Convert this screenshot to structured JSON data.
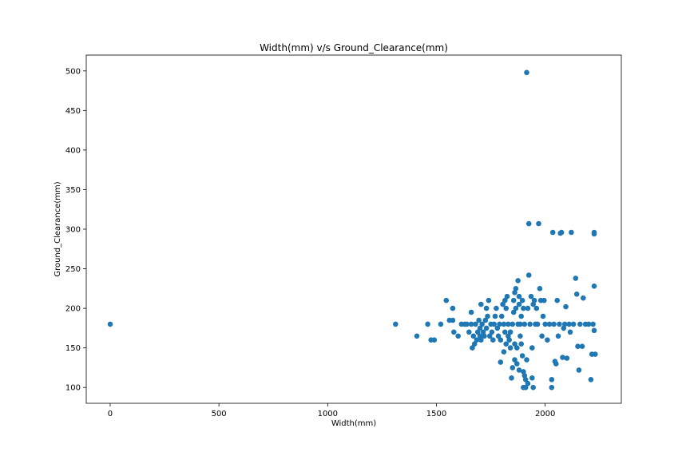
{
  "chart_data": {
    "type": "scatter",
    "title": "Width(mm) v/s Ground_Clearance(mm)",
    "xlabel": "Width(mm)",
    "ylabel": "Ground_Clearance(mm)",
    "xlim": [
      -110,
      2350
    ],
    "ylim": [
      80,
      520
    ],
    "xticks": [
      0,
      500,
      1000,
      1500,
      2000
    ],
    "yticks": [
      100,
      150,
      200,
      250,
      300,
      350,
      400,
      450,
      500
    ],
    "grid": false,
    "marker_color": "#1f77b4",
    "points": [
      [
        0,
        180
      ],
      [
        1312,
        180
      ],
      [
        1410,
        165
      ],
      [
        1460,
        180
      ],
      [
        1475,
        160
      ],
      [
        1490,
        160
      ],
      [
        1520,
        180
      ],
      [
        1545,
        210
      ],
      [
        1560,
        185
      ],
      [
        1575,
        200
      ],
      [
        1575,
        185
      ],
      [
        1580,
        170
      ],
      [
        1600,
        165
      ],
      [
        1615,
        180
      ],
      [
        1630,
        180
      ],
      [
        1640,
        180
      ],
      [
        1650,
        170
      ],
      [
        1660,
        180
      ],
      [
        1660,
        195
      ],
      [
        1665,
        150
      ],
      [
        1670,
        165
      ],
      [
        1675,
        155
      ],
      [
        1680,
        180
      ],
      [
        1685,
        160
      ],
      [
        1690,
        170
      ],
      [
        1695,
        185
      ],
      [
        1700,
        165
      ],
      [
        1700,
        175
      ],
      [
        1705,
        160
      ],
      [
        1705,
        205
      ],
      [
        1710,
        180
      ],
      [
        1715,
        170
      ],
      [
        1720,
        165
      ],
      [
        1725,
        185
      ],
      [
        1730,
        200
      ],
      [
        1730,
        175
      ],
      [
        1735,
        190
      ],
      [
        1740,
        210
      ],
      [
        1745,
        165
      ],
      [
        1750,
        180
      ],
      [
        1755,
        170
      ],
      [
        1760,
        160
      ],
      [
        1765,
        180
      ],
      [
        1770,
        190
      ],
      [
        1775,
        200
      ],
      [
        1780,
        175
      ],
      [
        1785,
        165
      ],
      [
        1790,
        180
      ],
      [
        1795,
        160
      ],
      [
        1795,
        132
      ],
      [
        1800,
        190
      ],
      [
        1805,
        205
      ],
      [
        1810,
        180
      ],
      [
        1810,
        145
      ],
      [
        1815,
        170
      ],
      [
        1815,
        210
      ],
      [
        1820,
        155
      ],
      [
        1820,
        200
      ],
      [
        1825,
        215
      ],
      [
        1830,
        180
      ],
      [
        1830,
        165
      ],
      [
        1835,
        160
      ],
      [
        1840,
        170
      ],
      [
        1840,
        150
      ],
      [
        1845,
        112
      ],
      [
        1850,
        180
      ],
      [
        1850,
        125
      ],
      [
        1855,
        195
      ],
      [
        1855,
        210
      ],
      [
        1860,
        135
      ],
      [
        1860,
        155
      ],
      [
        1860,
        220
      ],
      [
        1865,
        200
      ],
      [
        1865,
        225
      ],
      [
        1870,
        130
      ],
      [
        1870,
        150
      ],
      [
        1875,
        180
      ],
      [
        1875,
        235
      ],
      [
        1880,
        122
      ],
      [
        1880,
        205
      ],
      [
        1880,
        215
      ],
      [
        1885,
        165
      ],
      [
        1885,
        180
      ],
      [
        1890,
        190
      ],
      [
        1890,
        155
      ],
      [
        1895,
        210
      ],
      [
        1895,
        140
      ],
      [
        1900,
        200
      ],
      [
        1900,
        120
      ],
      [
        1900,
        100
      ],
      [
        1905,
        115
      ],
      [
        1905,
        180
      ],
      [
        1910,
        110
      ],
      [
        1910,
        100
      ],
      [
        1915,
        498
      ],
      [
        1915,
        135
      ],
      [
        1920,
        105
      ],
      [
        1920,
        200
      ],
      [
        1925,
        307
      ],
      [
        1925,
        242
      ],
      [
        1930,
        180
      ],
      [
        1935,
        215
      ],
      [
        1940,
        150
      ],
      [
        1940,
        112
      ],
      [
        1945,
        100
      ],
      [
        1945,
        205
      ],
      [
        1950,
        210
      ],
      [
        1955,
        180
      ],
      [
        1960,
        200
      ],
      [
        1965,
        180
      ],
      [
        1970,
        307
      ],
      [
        1975,
        225
      ],
      [
        1980,
        210
      ],
      [
        1985,
        165
      ],
      [
        1990,
        190
      ],
      [
        1995,
        210
      ],
      [
        2000,
        180
      ],
      [
        2010,
        160
      ],
      [
        2020,
        180
      ],
      [
        2030,
        110
      ],
      [
        2030,
        100
      ],
      [
        2035,
        296
      ],
      [
        2040,
        180
      ],
      [
        2045,
        133
      ],
      [
        2050,
        130
      ],
      [
        2055,
        210
      ],
      [
        2060,
        165
      ],
      [
        2065,
        180
      ],
      [
        2070,
        295
      ],
      [
        2075,
        296
      ],
      [
        2080,
        138
      ],
      [
        2085,
        175
      ],
      [
        2090,
        180
      ],
      [
        2095,
        202
      ],
      [
        2100,
        137
      ],
      [
        2110,
        180
      ],
      [
        2115,
        170
      ],
      [
        2120,
        296
      ],
      [
        2130,
        180
      ],
      [
        2140,
        238
      ],
      [
        2145,
        218
      ],
      [
        2150,
        152
      ],
      [
        2155,
        122
      ],
      [
        2160,
        180
      ],
      [
        2170,
        152
      ],
      [
        2175,
        213
      ],
      [
        2185,
        180
      ],
      [
        2200,
        180
      ],
      [
        2210,
        110
      ],
      [
        2215,
        142
      ],
      [
        2220,
        180
      ],
      [
        2225,
        296
      ],
      [
        2225,
        294
      ],
      [
        2225,
        228
      ],
      [
        2225,
        172
      ],
      [
        2230,
        142
      ]
    ]
  }
}
